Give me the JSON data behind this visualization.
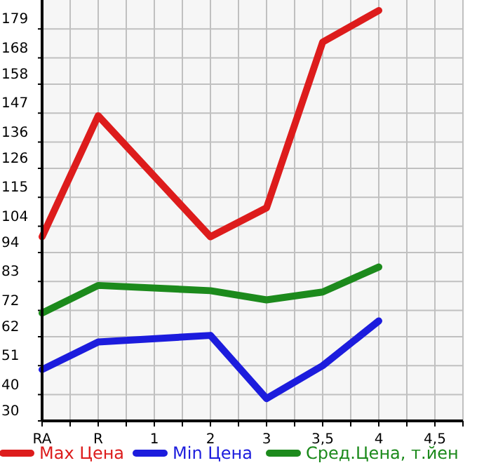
{
  "chart_data": {
    "type": "line",
    "categories": [
      "RA",
      "R",
      "1",
      "2",
      "3",
      "3,5",
      "4",
      "4,5"
    ],
    "series": [
      {
        "name": "Max Цена",
        "color": "#dd1c1c",
        "values": [
          100,
          146,
          null,
          100,
          111,
          174,
          186,
          null
        ]
      },
      {
        "name": "Min Цена",
        "color": "#1c1cdd",
        "values": [
          49.5,
          60,
          null,
          62.5,
          38.5,
          51,
          68,
          null
        ]
      },
      {
        "name": "Сред.Цена, т.йен",
        "color": "#1c8a1c",
        "values": [
          71,
          81.5,
          null,
          79.5,
          76,
          79,
          88.5,
          null
        ]
      }
    ],
    "ylim": [
      30,
      190
    ],
    "yticks": [
      30,
      40,
      51,
      62,
      72,
      83,
      94,
      104,
      115,
      126,
      136,
      147,
      158,
      168,
      179
    ],
    "grid": true,
    "legend": "bottom",
    "marker": "none",
    "line_style": "solid"
  }
}
